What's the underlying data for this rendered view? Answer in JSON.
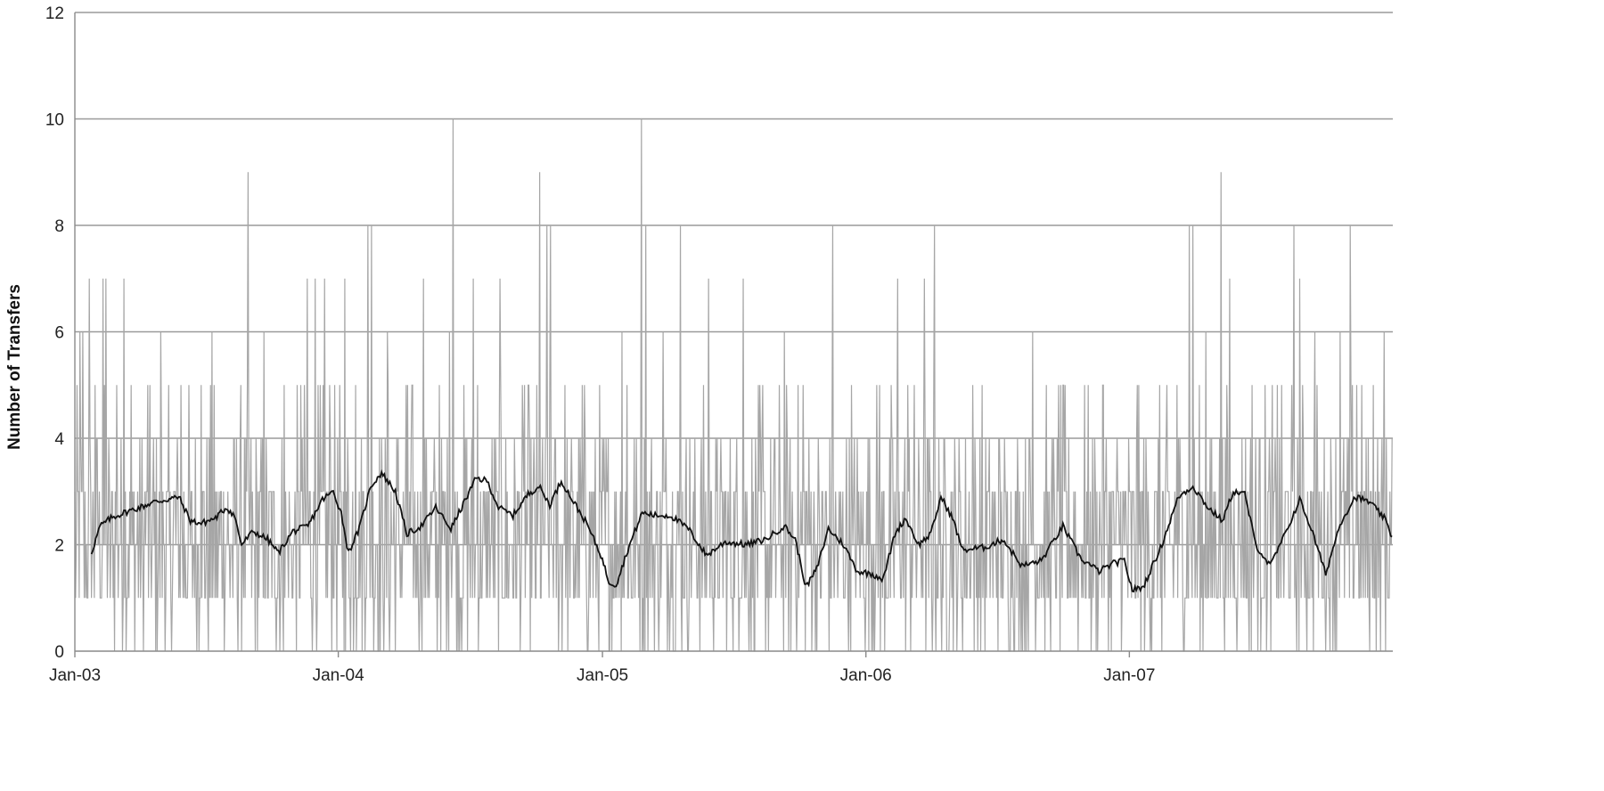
{
  "chart_data": {
    "type": "line",
    "title": "",
    "xlabel": "",
    "ylabel": "Number of Transfers",
    "ylim": [
      0,
      12
    ],
    "yticks": [
      0,
      2,
      4,
      6,
      8,
      10,
      12
    ],
    "xlim": [
      "2003-01-01",
      "2008-01-01"
    ],
    "xticks": [
      "Jan-03",
      "Jan-04",
      "Jan-05",
      "Jan-06",
      "Jan-07"
    ],
    "grid": true,
    "legend": "none",
    "series": [
      {
        "kind": "daily",
        "color": "#a6a6a6",
        "start": "2003-01-01",
        "spikes": [
          [
            "2003-01-08",
            6
          ],
          [
            "2003-01-12",
            6
          ],
          [
            "2003-01-21",
            7
          ],
          [
            "2003-01-29",
            5
          ],
          [
            "2003-02-09",
            7
          ],
          [
            "2003-02-13",
            7
          ],
          [
            "2003-03-10",
            7
          ],
          [
            "2003-02-28",
            5
          ],
          [
            "2003-03-20",
            5
          ],
          [
            "2003-04-12",
            5
          ],
          [
            "2003-04-30",
            6
          ],
          [
            "2003-05-28",
            5
          ],
          [
            "2003-06-25",
            5
          ],
          [
            "2003-07-10",
            6
          ],
          [
            "2003-08-29",
            9
          ],
          [
            "2003-09-20",
            6
          ],
          [
            "2003-10-18",
            5
          ],
          [
            "2003-11-10",
            5
          ],
          [
            "2003-11-19",
            7
          ],
          [
            "2003-11-30",
            7
          ],
          [
            "2003-12-13",
            7
          ],
          [
            "2003-12-20",
            5
          ],
          [
            "2004-01-10",
            7
          ],
          [
            "2004-01-25",
            5
          ],
          [
            "2004-02-11",
            8
          ],
          [
            "2004-02-16",
            8
          ],
          [
            "2004-03-09",
            6
          ],
          [
            "2004-04-06",
            5
          ],
          [
            "2004-04-28",
            7
          ],
          [
            "2004-05-20",
            5
          ],
          [
            "2004-06-03",
            6
          ],
          [
            "2004-06-08",
            10
          ],
          [
            "2004-07-06",
            7
          ],
          [
            "2004-07-12",
            5
          ],
          [
            "2004-08-12",
            7
          ],
          [
            "2004-09-15",
            5
          ],
          [
            "2004-10-06",
            9
          ],
          [
            "2004-10-16",
            8
          ],
          [
            "2004-10-21",
            8
          ],
          [
            "2004-11-10",
            5
          ],
          [
            "2004-12-04",
            5
          ],
          [
            "2005-01-28",
            6
          ],
          [
            "2005-02-04",
            5
          ],
          [
            "2005-02-24",
            10
          ],
          [
            "2005-03-02",
            8
          ],
          [
            "2005-03-26",
            6
          ],
          [
            "2005-04-19",
            8
          ],
          [
            "2005-05-28",
            7
          ],
          [
            "2005-07-15",
            7
          ],
          [
            "2005-08-11",
            5
          ],
          [
            "2005-09-10",
            6
          ],
          [
            "2005-10-06",
            5
          ],
          [
            "2005-11-16",
            8
          ],
          [
            "2005-12-12",
            5
          ],
          [
            "2006-01-20",
            5
          ],
          [
            "2006-02-14",
            7
          ],
          [
            "2006-02-28",
            5
          ],
          [
            "2006-03-23",
            7
          ],
          [
            "2006-04-06",
            8
          ],
          [
            "2006-05-29",
            5
          ],
          [
            "2006-08-20",
            6
          ],
          [
            "2006-09-25",
            5
          ],
          [
            "2006-11-26",
            5
          ],
          [
            "2007-01-12",
            5
          ],
          [
            "2007-02-10",
            4
          ],
          [
            "2007-03-08",
            5
          ],
          [
            "2007-03-25",
            8
          ],
          [
            "2007-03-30",
            8
          ],
          [
            "2007-04-17",
            6
          ],
          [
            "2007-05-08",
            9
          ],
          [
            "2007-05-20",
            7
          ],
          [
            "2007-06-20",
            5
          ],
          [
            "2007-07-25",
            5
          ],
          [
            "2007-08-17",
            8
          ],
          [
            "2007-08-25",
            7
          ],
          [
            "2007-09-15",
            6
          ],
          [
            "2007-10-20",
            6
          ],
          [
            "2007-11-03",
            8
          ],
          [
            "2007-11-12",
            5
          ],
          [
            "2007-12-05",
            5
          ],
          [
            "2007-12-20",
            6
          ]
        ]
      },
      {
        "kind": "moving-average",
        "color": "#111111",
        "points": [
          [
            "2003-01-24",
            1.85
          ],
          [
            "2003-02-05",
            2.35
          ],
          [
            "2003-02-20",
            2.5
          ],
          [
            "2003-03-10",
            2.6
          ],
          [
            "2003-04-01",
            2.7
          ],
          [
            "2003-04-20",
            2.8
          ],
          [
            "2003-05-10",
            2.85
          ],
          [
            "2003-05-25",
            2.9
          ],
          [
            "2003-06-10",
            2.45
          ],
          [
            "2003-06-25",
            2.4
          ],
          [
            "2003-07-15",
            2.5
          ],
          [
            "2003-07-30",
            2.7
          ],
          [
            "2003-08-10",
            2.55
          ],
          [
            "2003-08-20",
            2.0
          ],
          [
            "2003-09-05",
            2.25
          ],
          [
            "2003-09-25",
            2.1
          ],
          [
            "2003-10-10",
            1.85
          ],
          [
            "2003-10-30",
            2.25
          ],
          [
            "2003-11-20",
            2.35
          ],
          [
            "2003-12-10",
            2.85
          ],
          [
            "2003-12-25",
            3.0
          ],
          [
            "2004-01-05",
            2.6
          ],
          [
            "2004-01-15",
            1.85
          ],
          [
            "2004-01-30",
            2.3
          ],
          [
            "2004-02-15",
            3.1
          ],
          [
            "2004-03-01",
            3.35
          ],
          [
            "2004-03-20",
            3.0
          ],
          [
            "2004-04-05",
            2.2
          ],
          [
            "2004-04-25",
            2.35
          ],
          [
            "2004-05-15",
            2.7
          ],
          [
            "2004-06-05",
            2.3
          ],
          [
            "2004-06-20",
            2.7
          ],
          [
            "2004-07-10",
            3.25
          ],
          [
            "2004-07-25",
            3.2
          ],
          [
            "2004-08-10",
            2.7
          ],
          [
            "2004-08-30",
            2.55
          ],
          [
            "2004-09-20",
            2.95
          ],
          [
            "2004-10-05",
            3.1
          ],
          [
            "2004-10-20",
            2.75
          ],
          [
            "2004-11-05",
            3.2
          ],
          [
            "2004-11-20",
            2.85
          ],
          [
            "2004-12-10",
            2.4
          ],
          [
            "2004-12-30",
            1.8
          ],
          [
            "2005-01-10",
            1.3
          ],
          [
            "2005-01-20",
            1.25
          ],
          [
            "2005-02-05",
            1.9
          ],
          [
            "2005-02-25",
            2.6
          ],
          [
            "2005-03-15",
            2.55
          ],
          [
            "2005-04-05",
            2.55
          ],
          [
            "2005-04-30",
            2.3
          ],
          [
            "2005-05-25",
            1.8
          ],
          [
            "2005-06-20",
            2.05
          ],
          [
            "2005-07-20",
            2.0
          ],
          [
            "2005-08-15",
            2.1
          ],
          [
            "2005-09-10",
            2.35
          ],
          [
            "2005-09-25",
            2.1
          ],
          [
            "2005-10-10",
            1.2
          ],
          [
            "2005-10-25",
            1.55
          ],
          [
            "2005-11-10",
            2.3
          ],
          [
            "2005-12-01",
            2.0
          ],
          [
            "2005-12-20",
            1.5
          ],
          [
            "2006-01-10",
            1.45
          ],
          [
            "2006-01-25",
            1.35
          ],
          [
            "2006-02-10",
            2.2
          ],
          [
            "2006-02-25",
            2.5
          ],
          [
            "2006-03-15",
            2.0
          ],
          [
            "2006-04-01",
            2.2
          ],
          [
            "2006-04-15",
            2.9
          ],
          [
            "2006-05-01",
            2.5
          ],
          [
            "2006-05-15",
            1.9
          ],
          [
            "2006-06-15",
            1.95
          ],
          [
            "2006-07-10",
            2.1
          ],
          [
            "2006-08-05",
            1.6
          ],
          [
            "2006-09-01",
            1.7
          ],
          [
            "2006-10-01",
            2.35
          ],
          [
            "2006-10-25",
            1.75
          ],
          [
            "2006-11-20",
            1.5
          ],
          [
            "2006-12-10",
            1.65
          ],
          [
            "2006-12-25",
            1.7
          ],
          [
            "2007-01-05",
            1.15
          ],
          [
            "2007-01-20",
            1.2
          ],
          [
            "2007-02-15",
            2.0
          ],
          [
            "2007-03-10",
            2.9
          ],
          [
            "2007-03-30",
            3.1
          ],
          [
            "2007-04-20",
            2.7
          ],
          [
            "2007-05-10",
            2.45
          ],
          [
            "2007-05-25",
            3.0
          ],
          [
            "2007-06-10",
            2.95
          ],
          [
            "2007-06-25",
            2.0
          ],
          [
            "2007-07-15",
            1.6
          ],
          [
            "2007-08-05",
            2.2
          ],
          [
            "2007-08-25",
            2.85
          ],
          [
            "2007-09-10",
            2.3
          ],
          [
            "2007-09-30",
            1.45
          ],
          [
            "2007-10-20",
            2.4
          ],
          [
            "2007-11-10",
            2.9
          ],
          [
            "2007-11-30",
            2.8
          ],
          [
            "2007-12-20",
            2.5
          ],
          [
            "2007-12-31",
            2.15
          ]
        ]
      }
    ]
  }
}
